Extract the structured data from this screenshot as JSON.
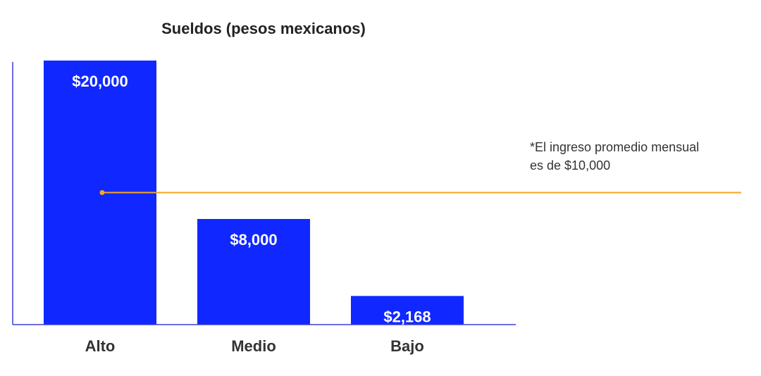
{
  "chart_data": {
    "type": "bar",
    "title": "Sueldos (pesos mexicanos)",
    "categories": [
      "Alto",
      "Medio",
      "Bajo"
    ],
    "values": [
      20000,
      8000,
      2168
    ],
    "value_labels": [
      "$20,000",
      "$8,000",
      "$2,168"
    ],
    "ylim": [
      0,
      20000
    ],
    "grid": false,
    "reference_line": {
      "value": 10000,
      "note_lines": [
        "*El ingreso promedio mensual",
        "es de $10,000"
      ]
    },
    "colors": {
      "bar": "#1028ff",
      "axis": "#3a3fd6",
      "reference": "#f5a623",
      "value_text": "#ffffff",
      "category_text": "#333333"
    }
  }
}
